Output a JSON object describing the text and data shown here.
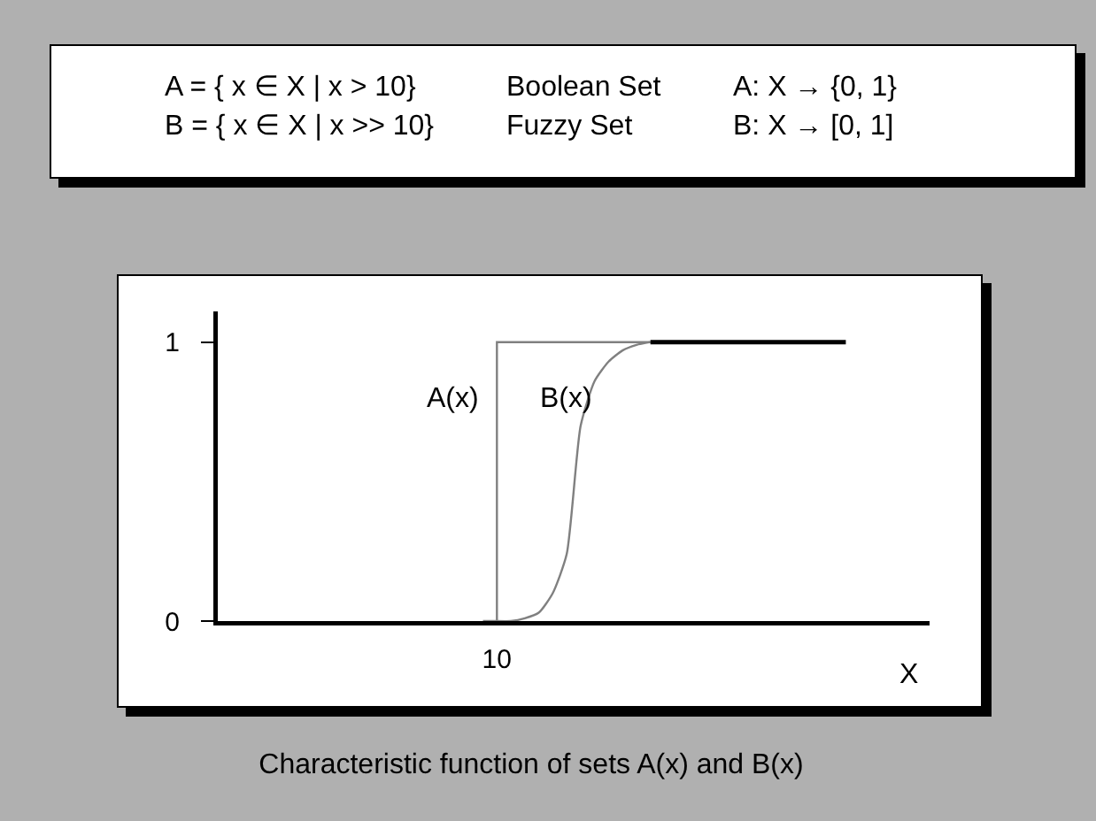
{
  "chart_data": {
    "type": "line",
    "xlabel": "X",
    "categories": [
      null,
      null,
      null,
      null,
      null,
      null,
      null,
      null,
      null,
      null,
      null,
      null,
      null,
      null,
      null,
      null,
      null,
      null,
      null,
      null,
      "10",
      null,
      null,
      null,
      null,
      null,
      null,
      null,
      null,
      null,
      null,
      null,
      null,
      null,
      null,
      null,
      null,
      null,
      null,
      null,
      null,
      null,
      null,
      null,
      null,
      null,
      null,
      null,
      null,
      null,
      null,
      null
    ],
    "ylim": [
      0,
      1.11
    ],
    "yticks": [
      0,
      1
    ],
    "series": [
      {
        "name": "A(x)",
        "type": "step",
        "color": "#808080",
        "values": [
          null,
          null,
          null,
          null,
          null,
          null,
          null,
          null,
          null,
          null,
          null,
          null,
          null,
          null,
          null,
          null,
          null,
          null,
          null,
          0,
          1,
          1,
          1,
          1,
          1,
          1,
          1,
          1,
          1,
          1,
          1,
          1,
          null,
          null,
          null,
          null,
          null,
          null,
          null,
          null,
          null,
          null,
          null,
          null,
          null,
          null,
          null,
          null,
          null,
          null,
          null,
          null
        ]
      },
      {
        "name": "B(x)",
        "color": "#808080",
        "values": [
          null,
          null,
          null,
          null,
          null,
          null,
          null,
          null,
          null,
          null,
          null,
          null,
          null,
          null,
          null,
          null,
          null,
          null,
          null,
          null,
          0,
          0,
          0.01,
          0.03,
          0.1,
          0.24,
          0.7,
          0.86,
          0.93,
          0.97,
          0.99,
          1,
          null,
          null,
          null,
          null,
          null,
          null,
          null,
          null,
          null,
          null,
          null,
          null,
          null,
          null,
          null,
          null,
          null,
          null,
          null,
          null
        ]
      },
      {
        "color": "#000000",
        "values": [
          null,
          null,
          null,
          null,
          null,
          null,
          null,
          null,
          null,
          null,
          null,
          null,
          null,
          null,
          null,
          null,
          null,
          null,
          null,
          null,
          null,
          null,
          null,
          null,
          null,
          null,
          null,
          null,
          null,
          null,
          null,
          1,
          1,
          1,
          1,
          1,
          1,
          1,
          1,
          1,
          1,
          1,
          1,
          1,
          1,
          1,
          null,
          null,
          null,
          null,
          null,
          null
        ]
      }
    ],
    "annotations": [
      "A = { x ∈ X | x > 10}",
      "Boolean Set",
      "A: X → {0, 1}",
      "B = { x ∈ X | x >> 10}",
      "Fuzzy Set",
      "B: X → [0, 1]",
      "Characteristic function of sets A(x) and B(x)"
    ]
  }
}
